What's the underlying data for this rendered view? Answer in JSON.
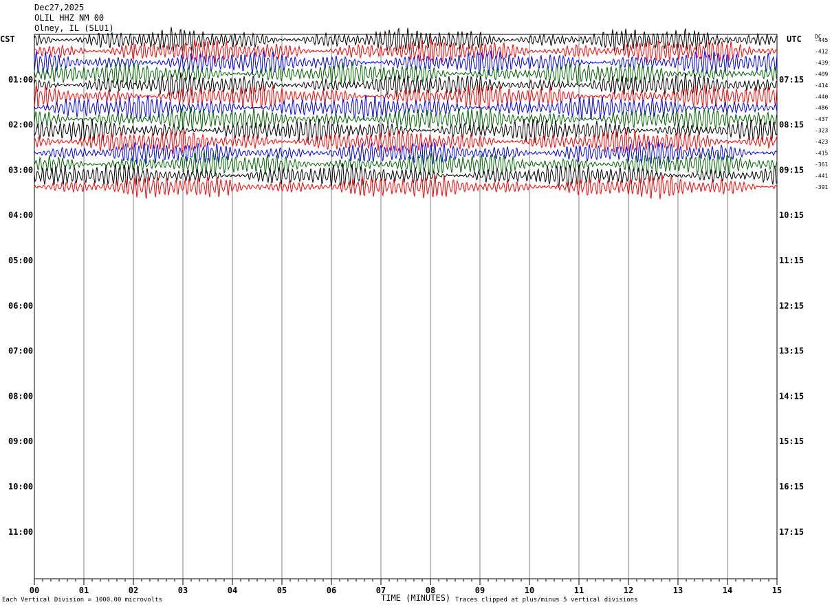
{
  "header": {
    "date": "Dec27,2025",
    "station": "OLIL HHZ NM 00",
    "location": "Olney, IL (SLU1)"
  },
  "left_zone_label": "CST",
  "right_zone_label": "UTC",
  "dc_label": "DC",
  "footer": {
    "scale_note": "Each Vertical Division = 1000.00 microvolts",
    "x_axis_title": "TIME (MINUTES)",
    "clip_note": "Traces clipped at plus/minus 5 vertical divisions"
  },
  "colors": {
    "trace_cycle": [
      "#000000",
      "#ff0000",
      "#0000ff",
      "#006400"
    ],
    "grid": "#808080",
    "axis": "#000000"
  },
  "chart_data": {
    "type": "line",
    "title": "",
    "xlabel": "TIME (MINUTES)",
    "xlim": [
      0,
      15
    ],
    "x_ticks": [
      "00",
      "01",
      "02",
      "03",
      "04",
      "05",
      "06",
      "07",
      "08",
      "09",
      "10",
      "11",
      "12",
      "13",
      "14",
      "15"
    ],
    "y_axis": "rows of 15-minute helicorder traces, one row per 15 minutes",
    "start_time_cst": "00:00",
    "rows_total": 48,
    "hour_labels_cst": [
      "01:00",
      "02:00",
      "03:00",
      "04:00",
      "05:00",
      "06:00",
      "07:00",
      "08:00",
      "09:00",
      "10:00",
      "11:00"
    ],
    "hour_labels_utc": [
      "07:15",
      "08:15",
      "09:15",
      "10:15",
      "11:15",
      "12:15",
      "13:15",
      "14:15",
      "15:15",
      "16:15",
      "17:15"
    ],
    "trace_offsets_dc": [
      "-445",
      "-412",
      "-439",
      "-409",
      "-414",
      "-440",
      "-486",
      "-437",
      "-323",
      "-423",
      "-415",
      "-361",
      "-441",
      "-391"
    ],
    "traces_count": 14,
    "trace_amplitude_divisions": 3.0,
    "clip_divisions": 5
  }
}
